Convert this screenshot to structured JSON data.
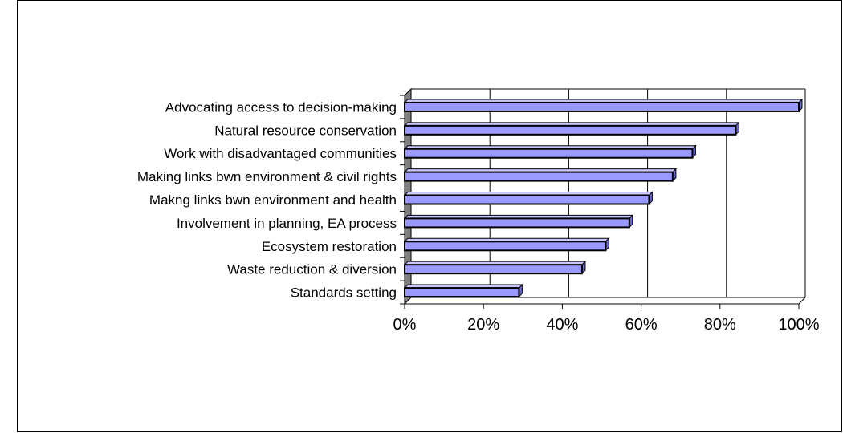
{
  "chart_data": {
    "type": "bar",
    "orientation": "horizontal",
    "style": "3d",
    "title": "",
    "xlabel": "",
    "ylabel": "",
    "xlim": [
      0,
      100
    ],
    "x_ticks": [
      "0%",
      "20%",
      "40%",
      "60%",
      "80%",
      "100%"
    ],
    "grid": true,
    "legend": "none",
    "categories": [
      "Advocating access to decision-making",
      "Natural resource conservation",
      "Work with disadvantaged communities",
      "Making links bwn environment & civil rights",
      "Makng links bwn environment and health",
      "Involvement in planning, EA process",
      "Ecosystem restoration",
      "Waste reduction & diversion",
      "Standards setting"
    ],
    "values": [
      100,
      84,
      73,
      68,
      62,
      57,
      51,
      45,
      29
    ],
    "colors": {
      "bar_fill": "#9999ff",
      "bar_outline": "#000000",
      "wall": "#808080",
      "gridline": "#000000"
    }
  }
}
